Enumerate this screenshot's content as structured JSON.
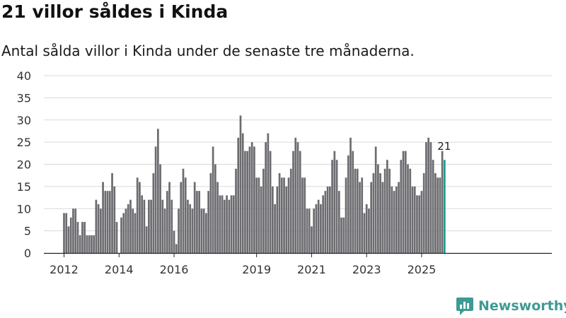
{
  "chart_data": {
    "type": "bar",
    "title": "21 villor såldes i Kinda",
    "subtitle": "Antal sålda villor i Kinda under de senaste tre månaderna.",
    "xlabel": "",
    "ylabel": "",
    "ylim": [
      0,
      40
    ],
    "yticks": [
      0,
      5,
      10,
      15,
      20,
      25,
      30,
      35,
      40
    ],
    "xticks": [
      {
        "label": "2012",
        "index": 0
      },
      {
        "label": "2014",
        "index": 24
      },
      {
        "label": "2016",
        "index": 48
      },
      {
        "label": "2019",
        "index": 84
      },
      {
        "label": "2021",
        "index": 108
      },
      {
        "label": "2023",
        "index": 132
      },
      {
        "label": "2025",
        "index": 156
      }
    ],
    "categories_note": "Monthly values, first bar = January 2012 (rolling three-month totals)",
    "values": [
      9,
      9,
      6,
      8,
      10,
      10,
      7,
      4,
      7,
      7,
      4,
      4,
      4,
      4,
      12,
      11,
      10,
      16,
      14,
      14,
      14,
      18,
      15,
      7,
      0,
      8,
      9,
      10,
      11,
      12,
      10,
      9,
      17,
      16,
      13,
      12,
      6,
      12,
      12,
      18,
      24,
      28,
      20,
      12,
      10,
      14,
      16,
      12,
      5,
      2,
      10,
      16,
      19,
      17,
      12,
      11,
      10,
      16,
      14,
      14,
      10,
      10,
      9,
      14,
      18,
      24,
      20,
      16,
      13,
      13,
      12,
      13,
      12,
      13,
      13,
      19,
      26,
      31,
      27,
      23,
      23,
      24,
      25,
      24,
      17,
      17,
      15,
      19,
      25,
      27,
      23,
      15,
      11,
      15,
      18,
      17,
      17,
      15,
      17,
      19,
      23,
      26,
      25,
      23,
      17,
      17,
      10,
      10,
      6,
      10,
      11,
      12,
      11,
      13,
      14,
      15,
      15,
      21,
      23,
      21,
      14,
      8,
      8,
      17,
      22,
      26,
      23,
      19,
      19,
      16,
      17,
      9,
      11,
      10,
      16,
      18,
      24,
      20,
      18,
      16,
      19,
      21,
      19,
      15,
      14,
      15,
      16,
      21,
      23,
      23,
      20,
      19,
      15,
      15,
      13,
      13,
      14,
      18,
      25,
      26,
      25,
      21,
      18,
      17,
      17,
      23,
      21
    ],
    "highlight": {
      "index": 166,
      "label": "21",
      "color": "#1f9a93"
    },
    "bar_color": "#6b6b70"
  },
  "brand": {
    "name": "Newsworthy",
    "color": "#3f9a94"
  }
}
